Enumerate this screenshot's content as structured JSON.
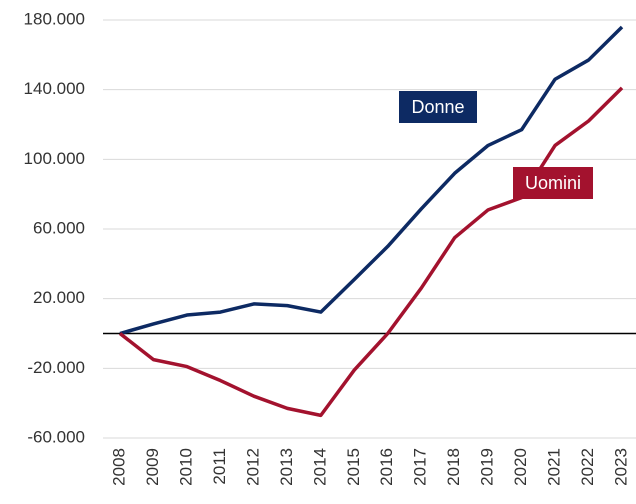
{
  "chart_data": {
    "type": "line",
    "categories": [
      "2008",
      "2009",
      "2010",
      "2011",
      "2012",
      "2013",
      "2014",
      "2015",
      "2016",
      "2017",
      "2018",
      "2019",
      "2020",
      "2021",
      "2022",
      "2023"
    ],
    "series": [
      {
        "name": "Donne",
        "color": "#0d2a63",
        "values": [
          0,
          5500,
          10600,
          12300,
          17000,
          16000,
          12300,
          31000,
          50000,
          71500,
          92000,
          108000,
          117000,
          146000,
          157000,
          176000
        ]
      },
      {
        "name": "Uomini",
        "color": "#a3122e",
        "values": [
          0,
          -15000,
          -19000,
          -27000,
          -36000,
          -43000,
          -47000,
          -21000,
          0,
          26000,
          55000,
          71000,
          78000,
          108000,
          122000,
          141000
        ]
      }
    ],
    "ylim": [
      -60000,
      180000
    ],
    "yticks": [
      {
        "value": -60000,
        "label": "-60.000"
      },
      {
        "value": -20000,
        "label": "-20.000"
      },
      {
        "value": 20000,
        "label": "20.000"
      },
      {
        "value": 60000,
        "label": "60.000"
      },
      {
        "value": 100000,
        "label": "100.000"
      },
      {
        "value": 140000,
        "label": "140.000"
      },
      {
        "value": 180000,
        "label": "180.000"
      }
    ],
    "grid": true
  }
}
